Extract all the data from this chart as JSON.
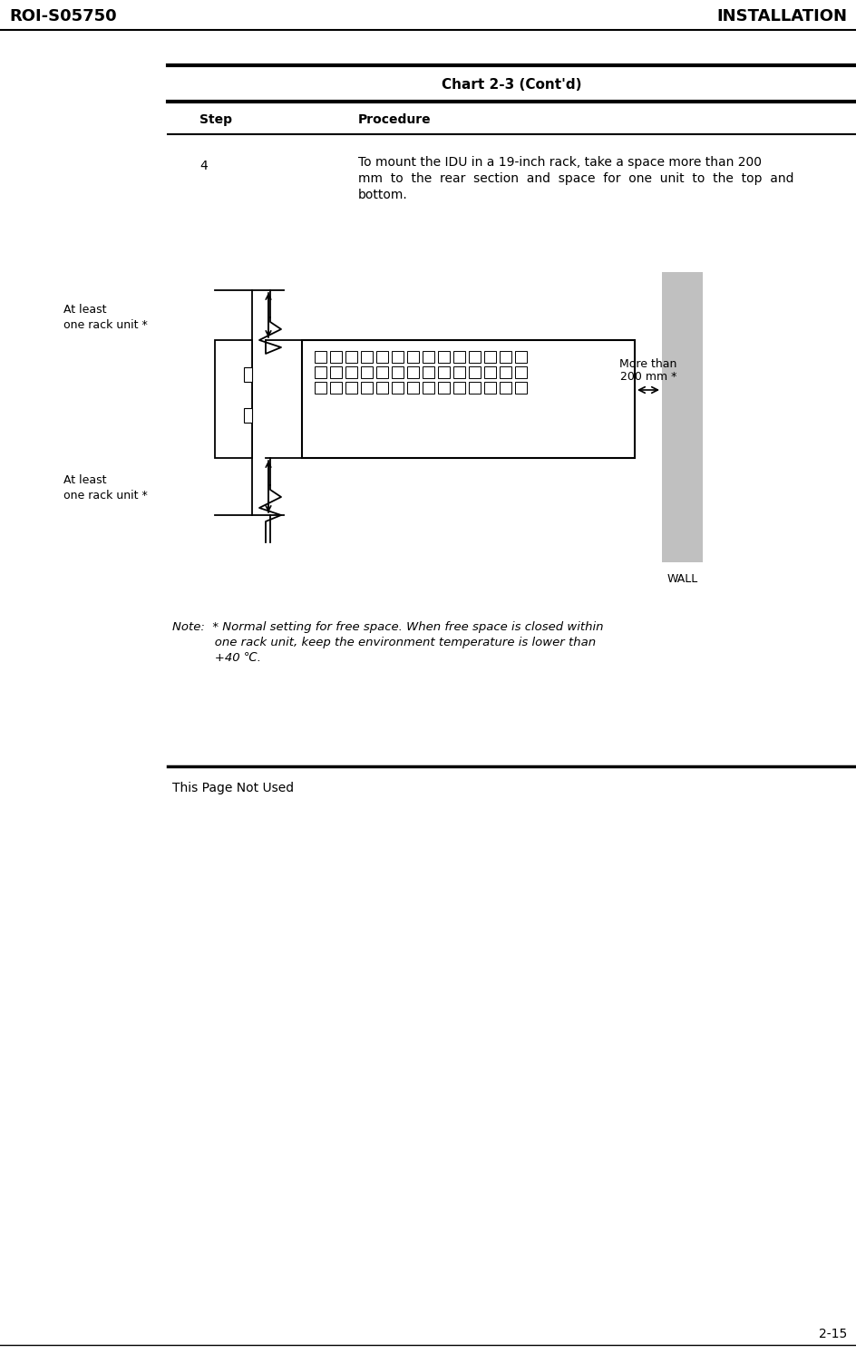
{
  "page_header_left": "ROI-S05750",
  "page_header_right": "INSTALLATION",
  "chart_title": "Chart 2-3 (Cont'd)",
  "step_label": "Step",
  "procedure_label": "Procedure",
  "step_number": "4",
  "step_text_line1": "To mount the IDU in a 19-inch rack, take a space more than 200",
  "step_text_line2": "mm  to  the  rear  section  and  space  for  one  unit  to  the  top  and",
  "step_text_line3": "bottom.",
  "label_top": "At least\none rack unit *",
  "label_bottom": "At least\none rack unit *",
  "label_right_line1": "More than",
  "label_right_line2": "200 mm *",
  "label_wall": "WALL",
  "note_line1": "Note:  * Normal setting for free space. When free space is closed within",
  "note_line2": "           one rack unit, keep the environment temperature is lower than",
  "note_line3": "           +40 ℃.",
  "page_not_used": "This Page Not Used",
  "page_number": "2-15",
  "bg_color": "#ffffff",
  "line_color": "#000000",
  "wall_color": "#c0c0c0"
}
